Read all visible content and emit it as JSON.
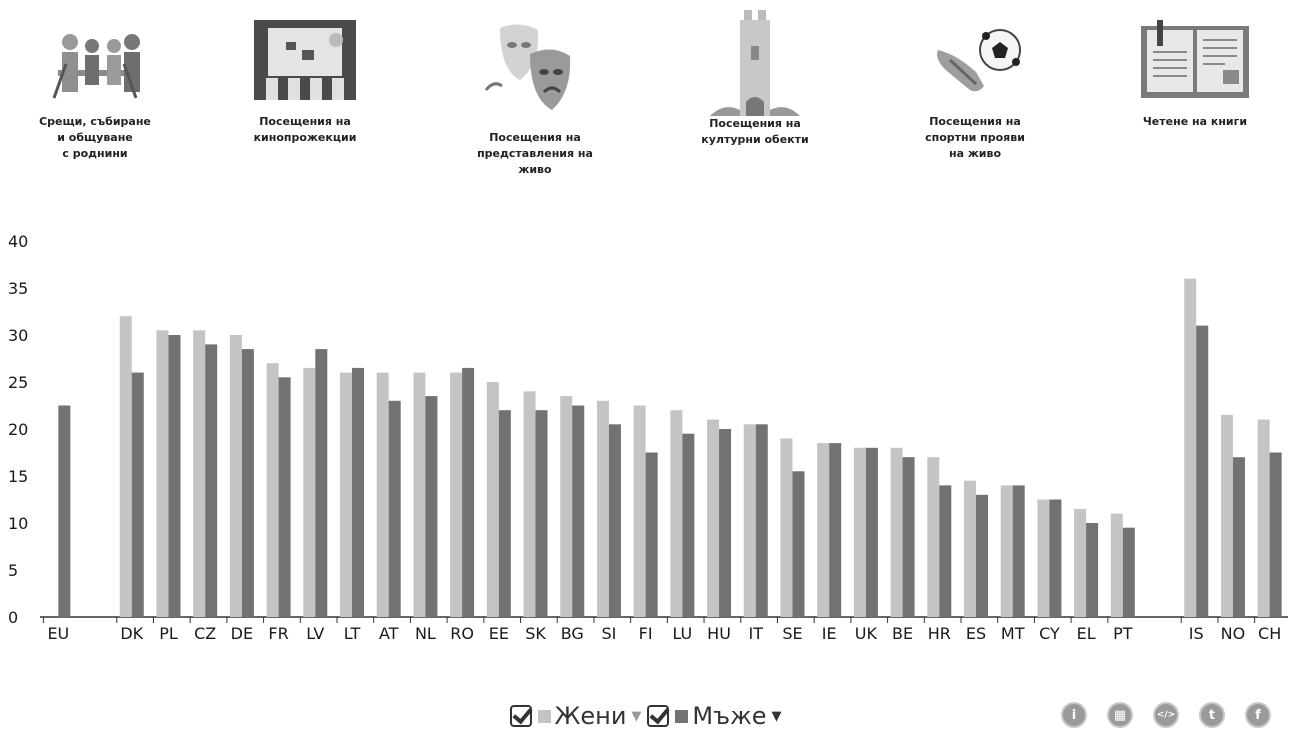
{
  "categories_nav": [
    {
      "label": "Срещи, събиране\nи общуване\nс роднини",
      "icon": "family-gathering-icon"
    },
    {
      "label": "Посещения на\nкинопрожекции",
      "icon": "cinema-screen-icon"
    },
    {
      "label": "Посещения на\nпредставления на\nживо",
      "icon": "theatre-masks-icon"
    },
    {
      "label": "Посещения на\nкултурни обекти",
      "icon": "castle-tower-icon"
    },
    {
      "label": "Посещения на\nспортни прояви\nна живо",
      "icon": "football-icon"
    },
    {
      "label": "Четене на книги",
      "icon": "open-book-icon"
    }
  ],
  "chart_data": {
    "type": "bar",
    "categories": [
      "EU",
      "",
      "DK",
      "PL",
      "CZ",
      "DE",
      "FR",
      "LV",
      "LT",
      "AT",
      "NL",
      "RO",
      "EE",
      "SK",
      "BG",
      "SI",
      "FI",
      "LU",
      "HU",
      "IT",
      "SE",
      "IE",
      "UK",
      "BE",
      "HR",
      "ES",
      "MT",
      "CY",
      "EL",
      "PT",
      "",
      "IS",
      "NO",
      "CH"
    ],
    "series": [
      {
        "name": "Жени",
        "color": "#c4c4c4",
        "values": [
          null,
          null,
          32,
          30.5,
          30.5,
          30,
          27,
          26.5,
          26,
          26,
          26,
          26,
          25,
          24,
          23.5,
          23,
          22.5,
          22,
          21,
          20.5,
          19,
          18.5,
          18,
          18,
          17,
          14.5,
          14,
          12.5,
          11.5,
          11,
          null,
          36,
          21.5,
          21
        ]
      },
      {
        "name": "Мъже",
        "color": "#727272",
        "values": [
          22.5,
          null,
          26,
          30,
          29,
          28.5,
          25.5,
          28.5,
          26.5,
          23,
          23.5,
          26.5,
          22,
          22,
          22.5,
          20.5,
          17.5,
          19.5,
          20,
          20.5,
          15.5,
          18.5,
          18,
          17,
          14,
          13,
          14,
          12.5,
          10,
          9.5,
          null,
          31,
          17,
          17.5
        ]
      }
    ],
    "ylim": [
      0,
      40
    ],
    "yticks": [
      0,
      5,
      10,
      15,
      20,
      25,
      30,
      35,
      40
    ],
    "grid": false,
    "legend_position": "bottom-center"
  },
  "legend": {
    "women_label": "Жени",
    "men_label": "Мъже"
  },
  "social": [
    {
      "icon": "info-icon",
      "glyph": "i"
    },
    {
      "icon": "embed-grid-icon",
      "glyph": "▦"
    },
    {
      "icon": "code-icon",
      "glyph": "</>"
    },
    {
      "icon": "twitter-icon",
      "glyph": "t"
    },
    {
      "icon": "facebook-icon",
      "glyph": "f"
    }
  ]
}
